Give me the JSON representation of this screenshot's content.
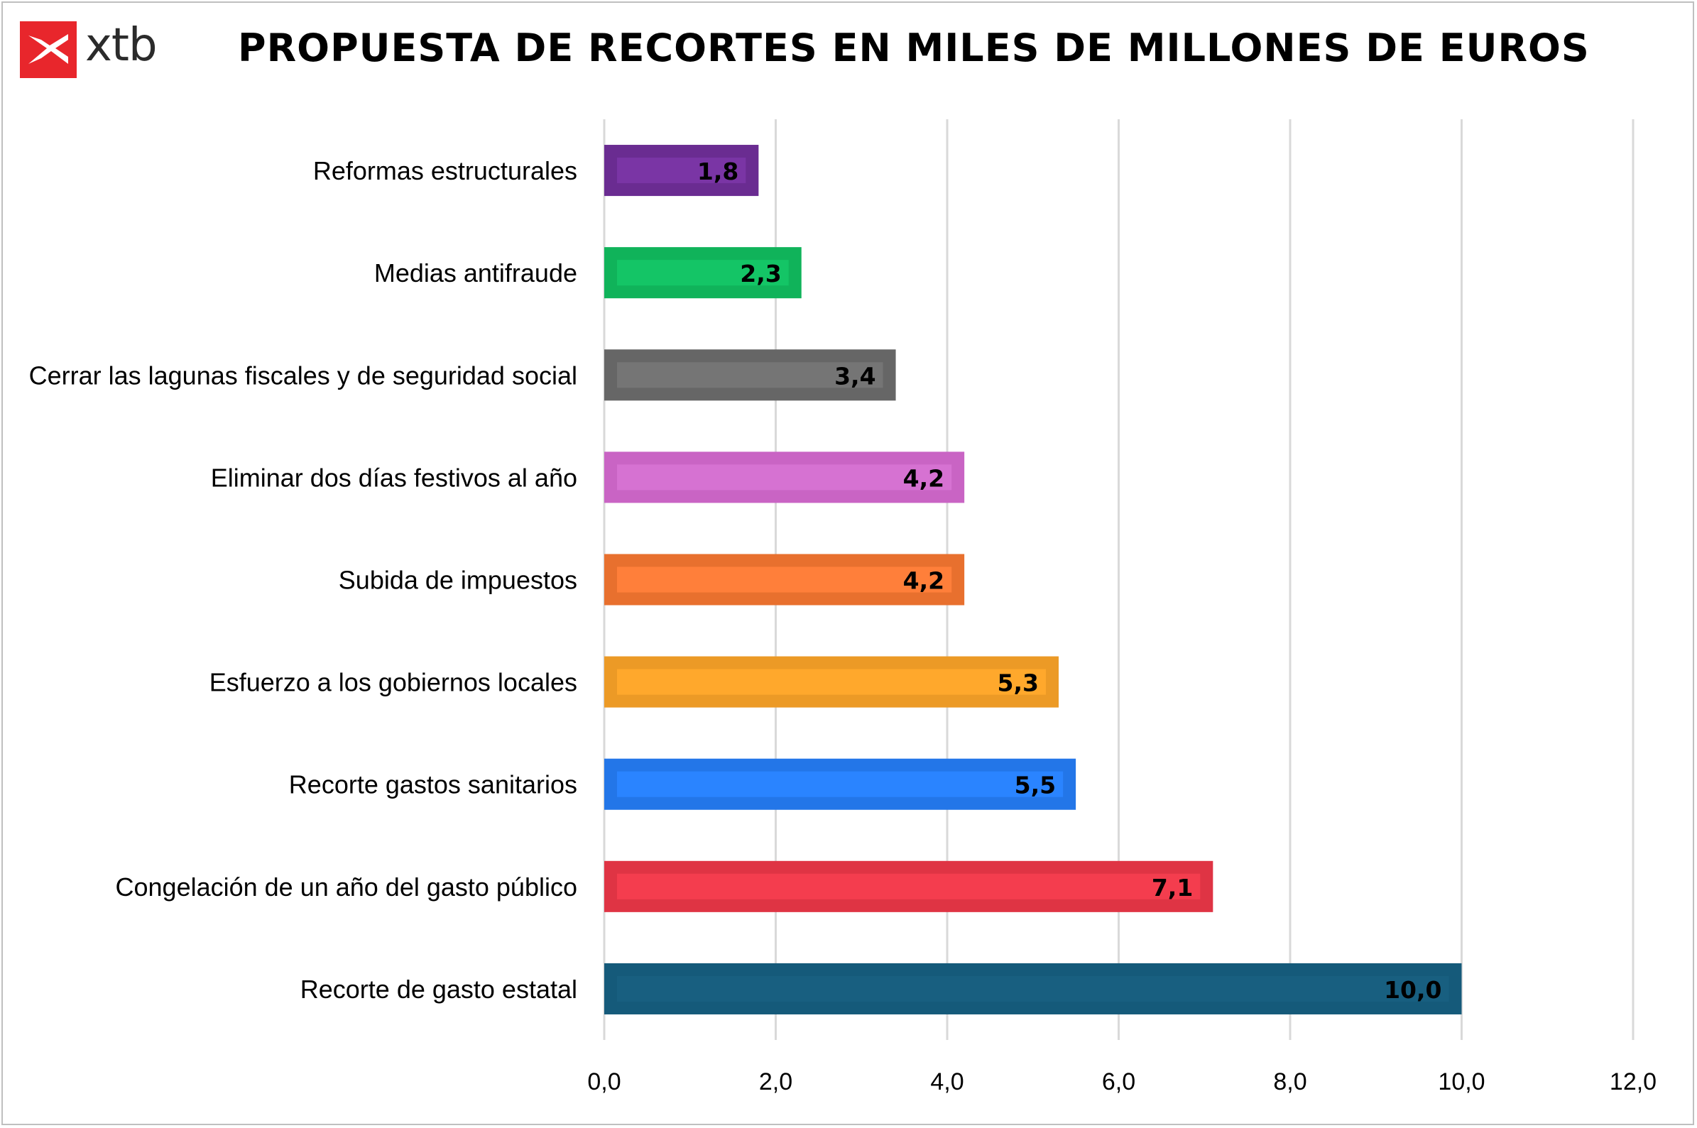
{
  "logo": {
    "text": "xtb",
    "color": "#e8262c"
  },
  "chart_data": {
    "type": "bar",
    "orientation": "horizontal",
    "title": "PROPUESTA DE RECORTES EN MILES DE MILLONES DE EUROS",
    "categories": [
      "Reformas estructurales",
      "Medias antifraude",
      "Cerrar las lagunas fiscales y de seguridad social",
      "Eliminar dos días festivos al año",
      "Subida de impuestos",
      "Esfuerzo a los gobiernos locales",
      "Recorte gastos sanitarios",
      "Congelación de un año del gasto público",
      "Recorte de gasto estatal"
    ],
    "values": [
      1.8,
      2.3,
      3.4,
      4.2,
      4.2,
      5.3,
      5.5,
      7.1,
      10.0
    ],
    "data_labels": [
      "1,8",
      "2,3",
      "3,4",
      "4,2",
      "4,2",
      "5,3",
      "5,5",
      "7,1",
      "10,0"
    ],
    "colors": [
      "#6a2c91",
      "#10b35a",
      "#666666",
      "#c964c4",
      "#e8702e",
      "#ec9a26",
      "#2376e8",
      "#df3444",
      "#155a7a"
    ],
    "highlight_colors": [
      "#7a35a5",
      "#14c566",
      "#757575",
      "#d672d2",
      "#ff7f3a",
      "#ffa82c",
      "#2a84ff",
      "#f43d4e",
      "#185f80"
    ],
    "xlim": [
      0,
      12
    ],
    "xticks": [
      0,
      2,
      4,
      6,
      8,
      10,
      12
    ],
    "xtick_labels": [
      "0,0",
      "2,0",
      "4,0",
      "6,0",
      "8,0",
      "10,0",
      "12,0"
    ],
    "grid": true,
    "xlabel": "",
    "ylabel": ""
  }
}
